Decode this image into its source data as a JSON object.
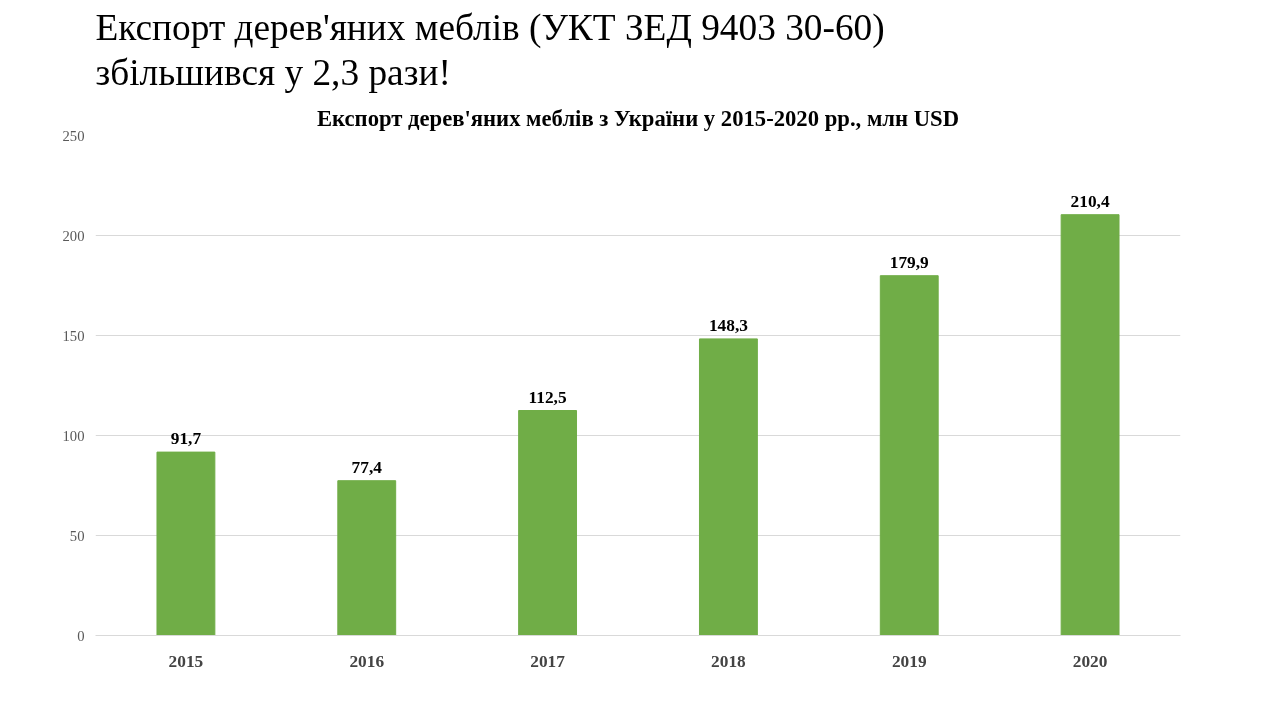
{
  "chart_data": {
    "type": "bar",
    "title": "Експорт дерев'яних меблів (УКТ ЗЕД 9403 30-60)\nзбільшився у 2,3 рази!",
    "subtitle": "Експорт дерев'яних меблів з України у 2015-2020 рр., млн USD",
    "categories": [
      "2015",
      "2016",
      "2017",
      "2018",
      "2019",
      "2020"
    ],
    "values": [
      91.7,
      77.4,
      112.5,
      148.3,
      179.9,
      210.4
    ],
    "value_labels": [
      "91,7",
      "77,4",
      "112,5",
      "148,3",
      "179,9",
      "210,4"
    ],
    "color": "#70ad47",
    "ylim": [
      0,
      250
    ],
    "yticks": [
      0,
      50,
      100,
      150,
      200,
      250
    ],
    "grid": "y"
  }
}
